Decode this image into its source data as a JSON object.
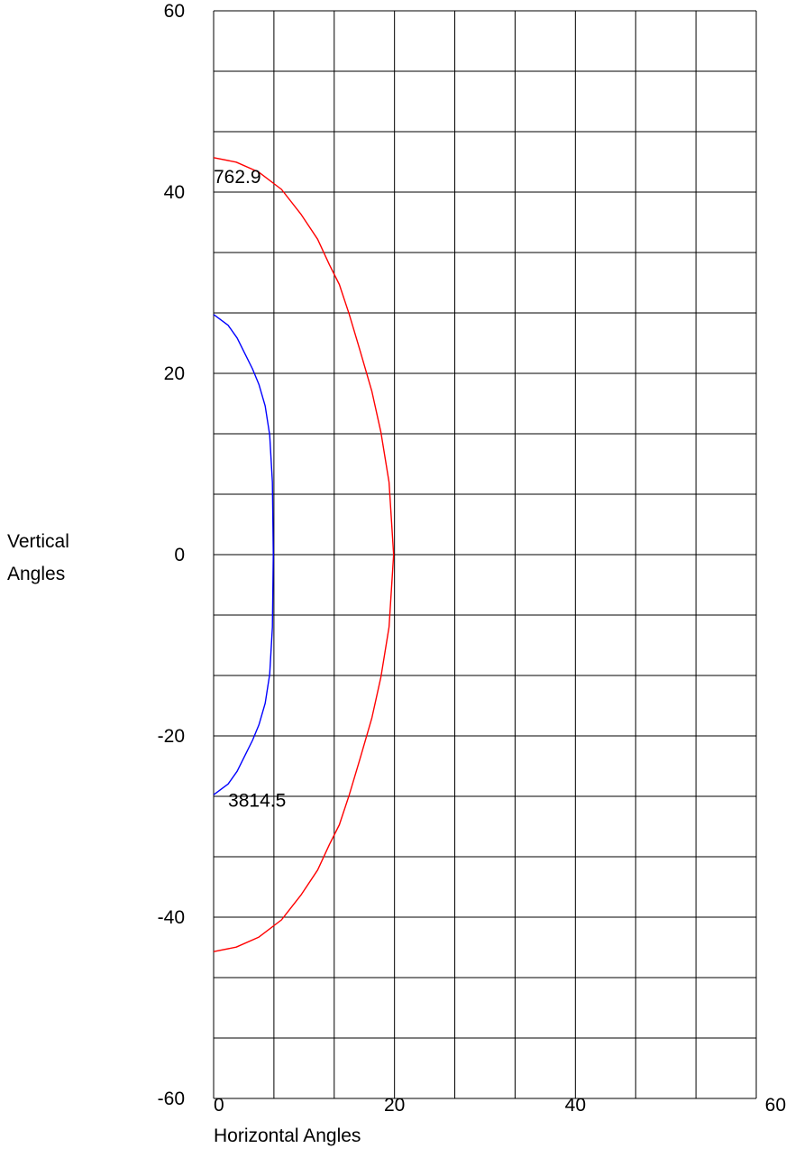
{
  "chart_data": {
    "type": "line",
    "xlabel": "Horizontal Angles",
    "ylabel": "Vertical\nAngles",
    "xlim": [
      0,
      60
    ],
    "ylim": [
      -60,
      60
    ],
    "grid": true,
    "x_ticks": [
      "0",
      "20",
      "40",
      "60"
    ],
    "y_ticks": [
      "60",
      "40",
      "20",
      "0",
      "-20",
      "-40",
      "-60"
    ],
    "series": [
      {
        "color": "#ff0000",
        "points": [
          [
            0,
            43.8
          ],
          [
            2.5,
            43.3
          ],
          [
            5,
            42.2
          ],
          [
            7.5,
            40.3
          ],
          [
            9.7,
            37.5
          ],
          [
            11.5,
            34.8
          ],
          [
            12.8,
            32.0
          ],
          [
            13.9,
            29.8
          ],
          [
            15,
            26.5
          ],
          [
            16.2,
            22.5
          ],
          [
            17.5,
            18.0
          ],
          [
            18.5,
            13.5
          ],
          [
            19.4,
            8.0
          ],
          [
            19.9,
            0
          ],
          [
            19.4,
            -8.0
          ],
          [
            18.5,
            -13.5
          ],
          [
            17.5,
            -18.0
          ],
          [
            16.2,
            -22.5
          ],
          [
            15,
            -26.5
          ],
          [
            13.9,
            -29.8
          ],
          [
            12.8,
            -32.0
          ],
          [
            11.5,
            -34.8
          ],
          [
            9.7,
            -37.5
          ],
          [
            7.5,
            -40.3
          ],
          [
            5,
            -42.2
          ],
          [
            2.5,
            -43.3
          ],
          [
            0,
            -43.8
          ]
        ]
      },
      {
        "color": "#0000ff",
        "points": [
          [
            0,
            26.5
          ],
          [
            1.6,
            25.3
          ],
          [
            2.6,
            23.9
          ],
          [
            3.5,
            22.1
          ],
          [
            4.3,
            20.5
          ],
          [
            5,
            18.8
          ],
          [
            5.7,
            16.4
          ],
          [
            6.2,
            13.2
          ],
          [
            6.5,
            8.0
          ],
          [
            6.6,
            0
          ],
          [
            6.5,
            -8.0
          ],
          [
            6.2,
            -13.2
          ],
          [
            5.7,
            -16.4
          ],
          [
            5,
            -18.8
          ],
          [
            4.3,
            -20.5
          ],
          [
            3.5,
            -22.1
          ],
          [
            2.6,
            -23.9
          ],
          [
            1.6,
            -25.3
          ],
          [
            0,
            -26.5
          ]
        ]
      }
    ],
    "annotations": [
      {
        "text": "762.9",
        "x": 0,
        "y": 42.0
      },
      {
        "text": "3814.5",
        "x": 1.6,
        "y": -26.8
      }
    ]
  }
}
